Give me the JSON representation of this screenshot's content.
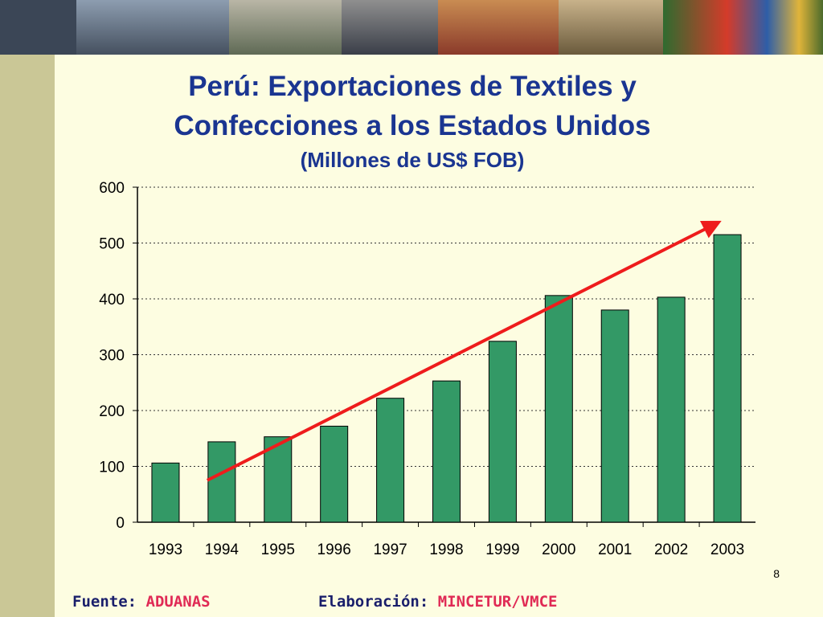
{
  "slide": {
    "page_number": "8",
    "footer": {
      "source_label": "Fuente:",
      "source_value": "ADUANAS",
      "made_label": "Elaboración:",
      "made_value": "MINCETUR/VMCE"
    }
  },
  "colors": {
    "bar": "#339966",
    "trend": "#ee1c1c",
    "title": "#1a3591"
  },
  "chart_data": {
    "type": "bar",
    "title_line1": "Perú: Exportaciones de Textiles y",
    "title_line2": "Confecciones a los Estados Unidos",
    "subtitle": "(Millones de US$ FOB)",
    "categories": [
      "1993",
      "1994",
      "1995",
      "1996",
      "1997",
      "1998",
      "1999",
      "2000",
      "2001",
      "2002",
      "2003"
    ],
    "values": [
      106,
      144,
      153,
      172,
      222,
      253,
      324,
      406,
      380,
      403,
      515
    ],
    "ylim": [
      0,
      600
    ],
    "yticks": [
      0,
      100,
      200,
      300,
      400,
      500,
      600
    ],
    "grid": true,
    "trend_line": {
      "from": {
        "x": "1994",
        "y": 75
      },
      "to": {
        "x": "2003",
        "y": 532
      }
    }
  }
}
